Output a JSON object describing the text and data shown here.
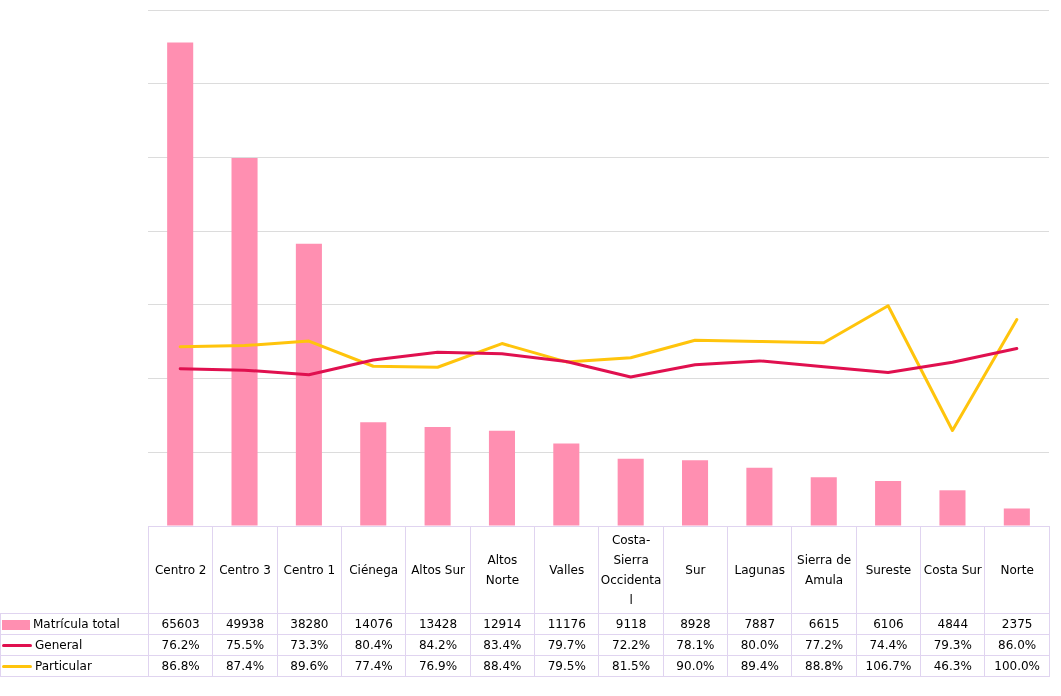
{
  "chart_data": {
    "type": "bar",
    "categories": [
      "Centro 2",
      "Centro 3",
      "Centro 1",
      "Ciénega",
      "Altos Sur",
      "Altos Norte",
      "Valles",
      "Costa-Sierra Occidental",
      "Sur",
      "Lagunas",
      "Sierra de Amula",
      "Sureste",
      "Costa Sur",
      "Norte"
    ],
    "series": [
      {
        "name": "Matrícula total",
        "color": "#ff8fb1",
        "values": [
          65603,
          49938,
          38280,
          14076,
          13428,
          12914,
          11176,
          9118,
          8928,
          7887,
          6615,
          6106,
          4844,
          2375
        ],
        "value_labels": [
          "65603",
          "49938",
          "38280",
          "14076",
          "13428",
          "12914",
          "11176",
          "9118",
          "8928",
          "7887",
          "6615",
          "6106",
          "4844",
          "2375"
        ]
      },
      {
        "name": "General",
        "type": "line",
        "axis": "y2",
        "color": "#e0104f",
        "values": [
          76.2,
          75.5,
          73.3,
          80.4,
          84.2,
          83.4,
          79.7,
          72.2,
          78.1,
          80.0,
          77.2,
          74.4,
          79.3,
          86.0
        ],
        "value_labels": [
          "76.2%",
          "75.5%",
          "73.3%",
          "80.4%",
          "84.2%",
          "83.4%",
          "79.7%",
          "72.2%",
          "78.1%",
          "80.0%",
          "77.2%",
          "74.4%",
          "79.3%",
          "86.0%"
        ]
      },
      {
        "name": "Particular",
        "type": "line",
        "axis": "y2",
        "color": "#ffc40c",
        "values": [
          86.8,
          87.4,
          89.6,
          77.4,
          76.9,
          88.4,
          79.5,
          81.5,
          90.0,
          89.4,
          88.8,
          106.7,
          46.3,
          100.0
        ],
        "value_labels": [
          "86.8%",
          "87.4%",
          "89.6%",
          "77.4%",
          "76.9%",
          "88.4%",
          "79.5%",
          "81.5%",
          "90.0%",
          "89.4%",
          "88.8%",
          "106.7%",
          "46.3%",
          "100.0%"
        ]
      }
    ],
    "ylim": [
      0,
      70000
    ],
    "y2lim": [
      0,
      250
    ],
    "grid": "y",
    "legend": "bottom",
    "tick_labels": "x",
    "marker": "none",
    "line_style": "solid"
  }
}
